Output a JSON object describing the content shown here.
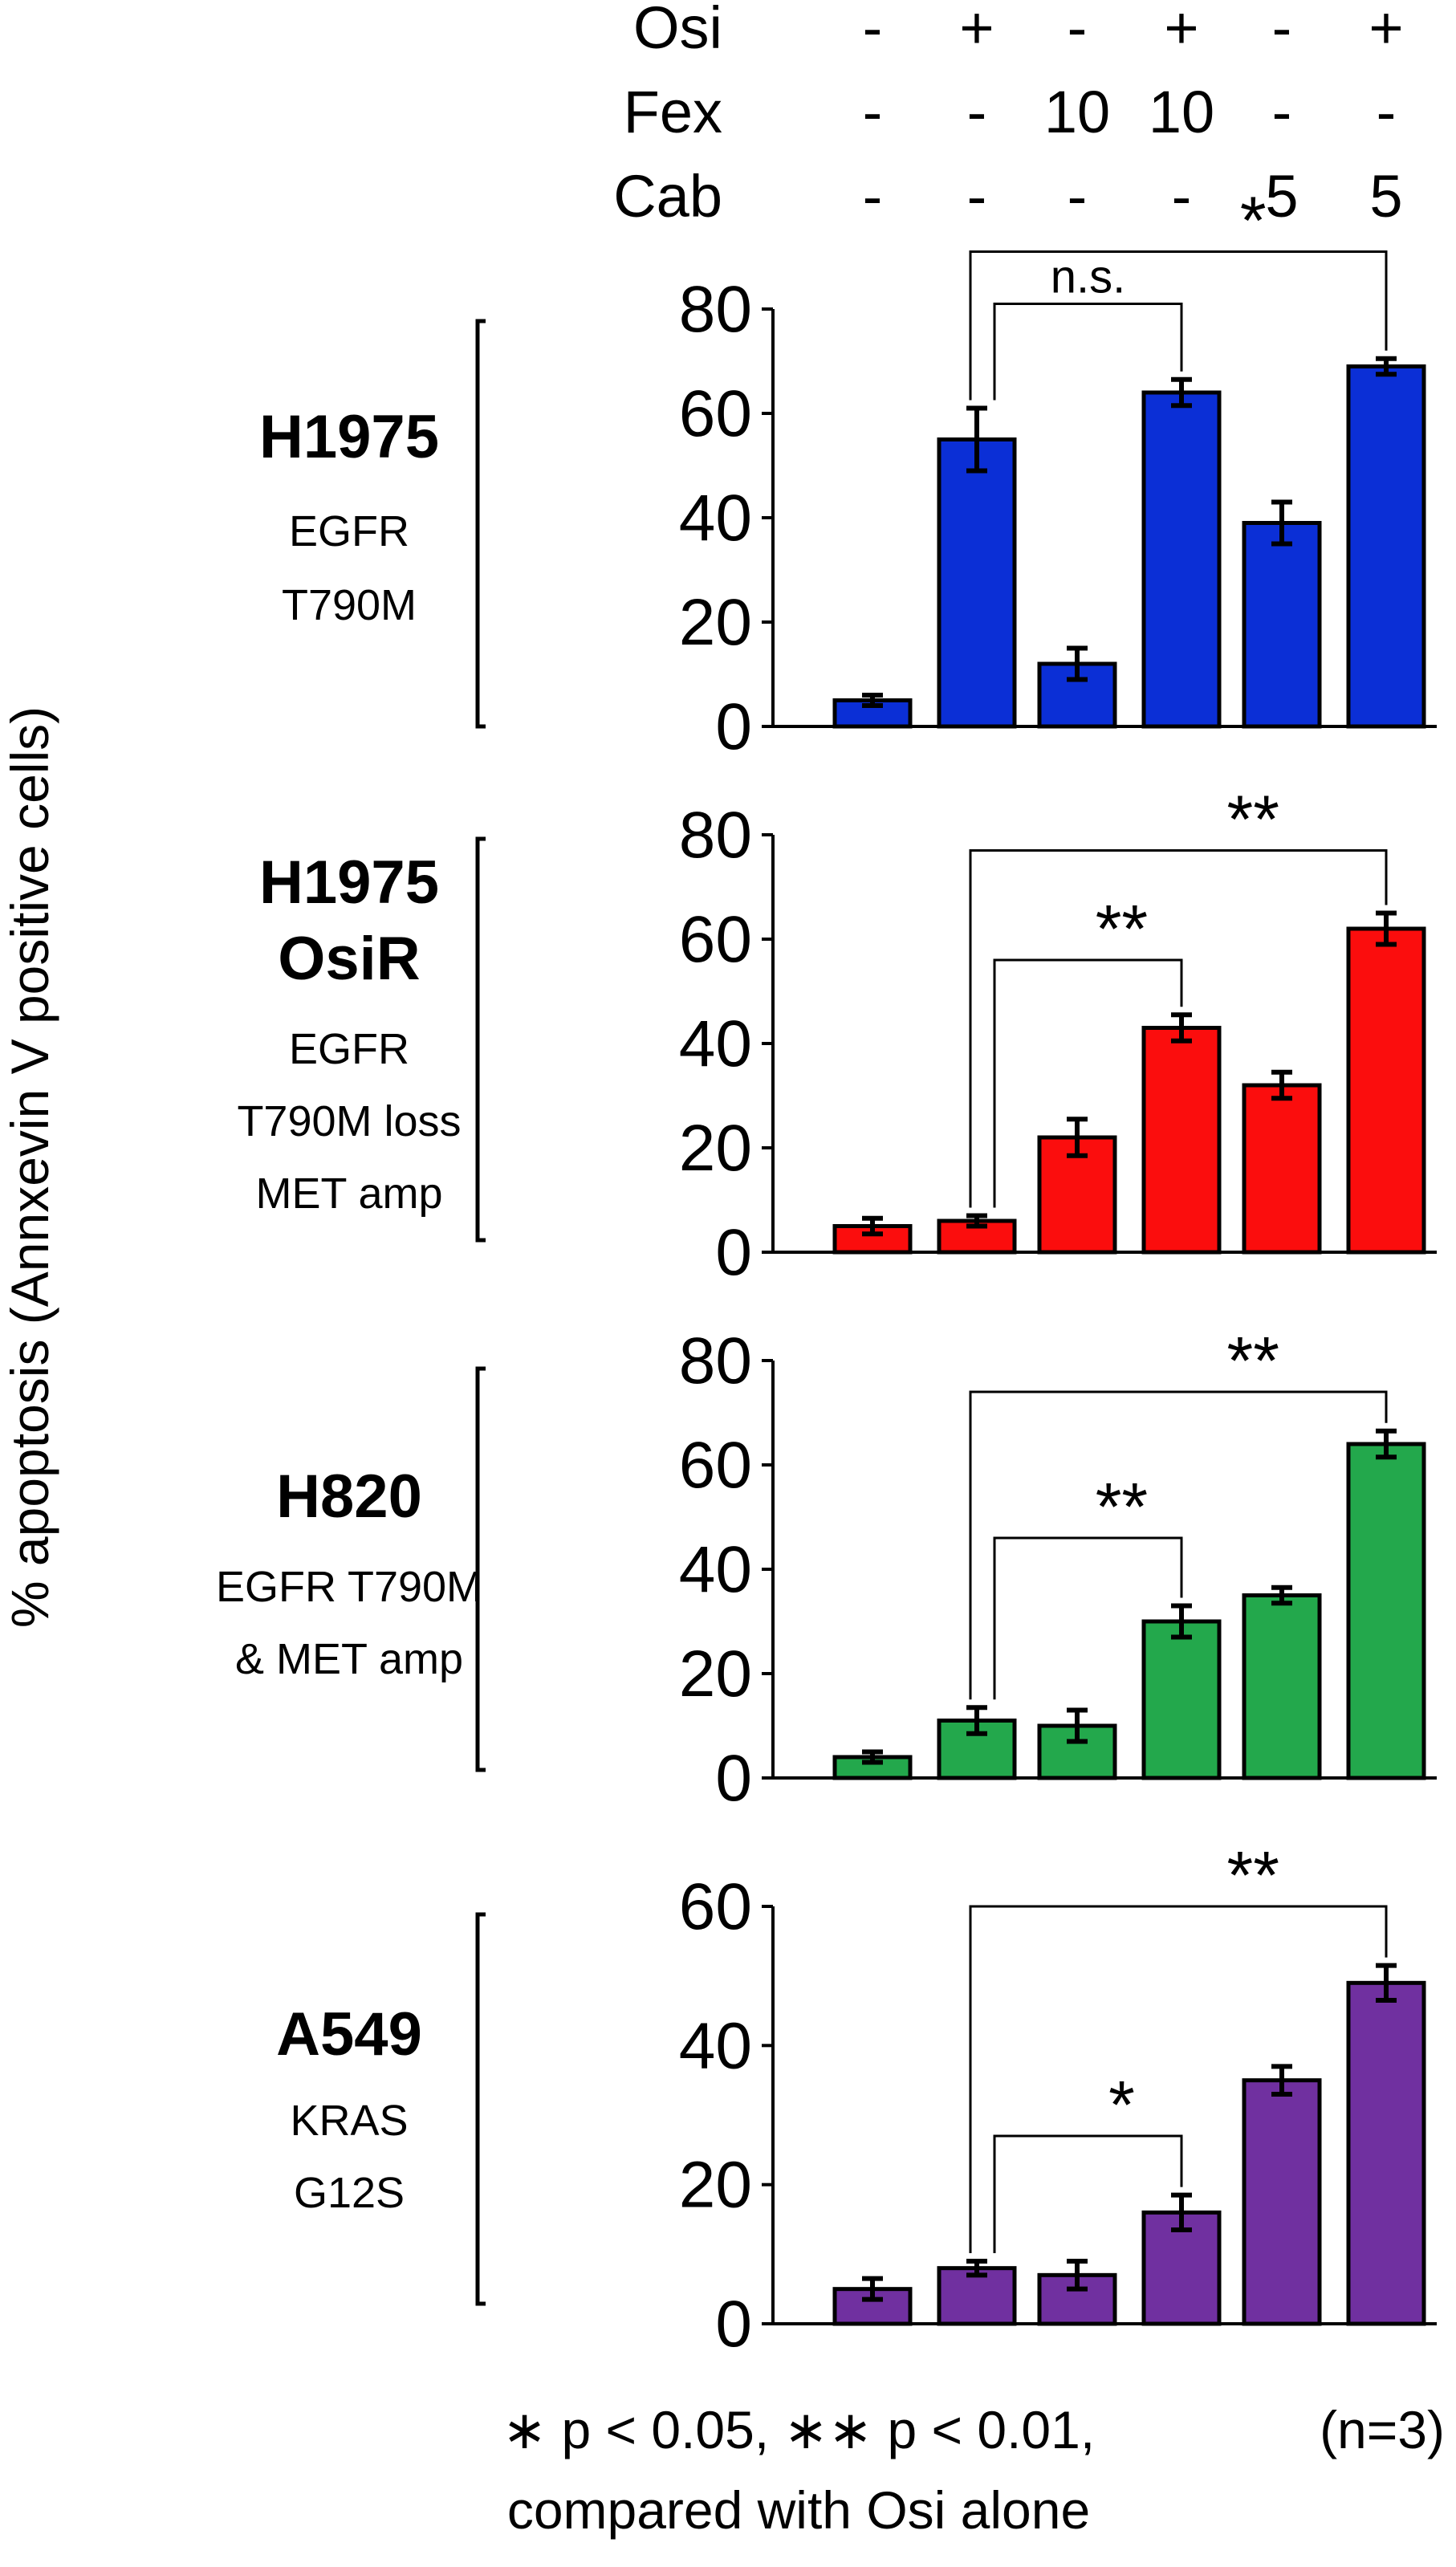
{
  "treatments": {
    "rows": [
      {
        "label": "Osi",
        "values": [
          "-",
          "+",
          "-",
          "+",
          "-",
          "+"
        ]
      },
      {
        "label": "Fex",
        "values": [
          "-",
          "-",
          "10",
          "10",
          "-",
          "-"
        ]
      },
      {
        "label": "Cab",
        "values": [
          "-",
          "-",
          "-",
          "-",
          "5",
          "5"
        ]
      }
    ]
  },
  "ylabel": "% apoptosis (Annxevin V positive cells)",
  "chart_data": [
    {
      "type": "bar",
      "title": "H1975",
      "subtitle_lines": [
        "EGFR",
        "T790M"
      ],
      "ylim": [
        0,
        80
      ],
      "yticks": [
        0,
        20,
        40,
        60,
        80
      ],
      "color": "#0b2fd6",
      "values": [
        5,
        55,
        12,
        64,
        39,
        69
      ],
      "errors": [
        1,
        6,
        3,
        2.5,
        4,
        1.5
      ],
      "comparisons": [
        {
          "from": 1,
          "to": 5,
          "label": "*",
          "level": 91
        },
        {
          "from": 1,
          "to": 3,
          "label": "n.s.",
          "level": 81
        }
      ]
    },
    {
      "type": "bar",
      "title": "H1975",
      "title_line2": "OsiR",
      "subtitle_lines": [
        "EGFR",
        "T790M loss",
        "MET amp"
      ],
      "ylim": [
        0,
        80
      ],
      "yticks": [
        0,
        20,
        40,
        60,
        80
      ],
      "color": "#fb0d0d",
      "values": [
        5,
        6,
        22,
        43,
        32,
        62
      ],
      "errors": [
        1.5,
        1,
        3.5,
        2.5,
        2.5,
        3
      ],
      "comparisons": [
        {
          "from": 1,
          "to": 5,
          "label": "**",
          "level": 77
        },
        {
          "from": 1,
          "to": 3,
          "label": "**",
          "level": 56
        }
      ]
    },
    {
      "type": "bar",
      "title": "H820",
      "subtitle_lines": [
        "EGFR T790M",
        "& MET amp"
      ],
      "ylim": [
        0,
        80
      ],
      "yticks": [
        0,
        20,
        40,
        60,
        80
      ],
      "color": "#23a84c",
      "values": [
        4,
        11,
        10,
        30,
        35,
        64
      ],
      "errors": [
        1,
        2.5,
        3,
        3,
        1.5,
        2.5
      ],
      "comparisons": [
        {
          "from": 1,
          "to": 5,
          "label": "**",
          "level": 74
        },
        {
          "from": 1,
          "to": 3,
          "label": "**",
          "level": 46
        }
      ]
    },
    {
      "type": "bar",
      "title": "A549",
      "subtitle_lines": [
        "KRAS",
        "G12S"
      ],
      "ylim": [
        0,
        60
      ],
      "yticks": [
        0,
        20,
        40,
        60
      ],
      "color": "#7030a0",
      "values": [
        5,
        8,
        7,
        16,
        35,
        49
      ],
      "errors": [
        1.5,
        1,
        2,
        2.5,
        2,
        2.5
      ],
      "comparisons": [
        {
          "from": 1,
          "to": 5,
          "label": "**",
          "level": 60
        },
        {
          "from": 1,
          "to": 3,
          "label": "*",
          "level": 27
        }
      ]
    }
  ],
  "footnote_line1": "∗ p < 0.05, ∗∗ p < 0.01,",
  "footnote_line2": "compared with Osi alone",
  "n_note": "(n=3)"
}
